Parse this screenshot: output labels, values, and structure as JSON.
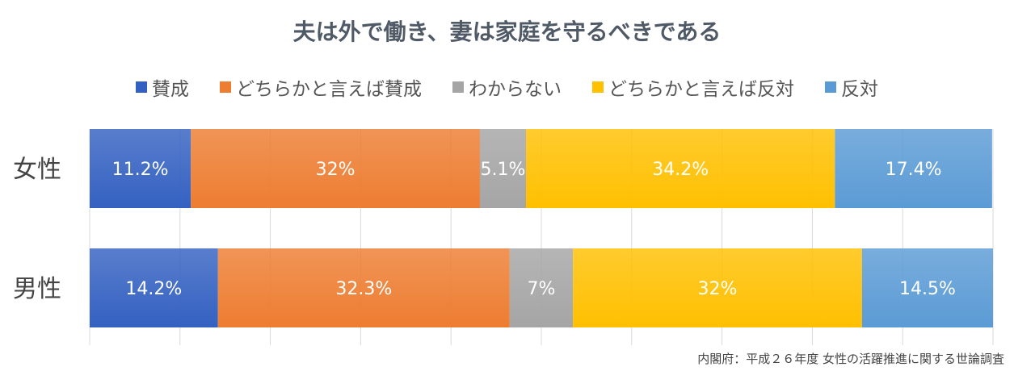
{
  "chart_data": {
    "type": "bar",
    "orientation": "horizontal",
    "stacked": true,
    "title": "夫は外で働き、妻は家庭を守るべきである",
    "categories": [
      "女性",
      "男性"
    ],
    "series": [
      {
        "name": "賛成",
        "values": [
          11.2,
          14.2
        ],
        "labels": [
          "11.2%",
          "14.2%"
        ],
        "color": "#3461c1"
      },
      {
        "name": "どちらかと言えば賛成",
        "values": [
          32,
          32.3
        ],
        "labels": [
          "32%",
          "32.3%"
        ],
        "color": "#ed7d31"
      },
      {
        "name": "わからない",
        "values": [
          5.1,
          7
        ],
        "labels": [
          "5.1%",
          "7%"
        ],
        "color": "#a5a5a5"
      },
      {
        "name": "どちらかと言えば反対",
        "values": [
          34.2,
          32
        ],
        "labels": [
          "34.2%",
          "32%"
        ],
        "color": "#ffc000"
      },
      {
        "name": "反対",
        "values": [
          17.4,
          14.5
        ],
        "labels": [
          "17.4%",
          "14.5%"
        ],
        "color": "#5b9bd5"
      }
    ],
    "xlim": [
      0,
      100
    ],
    "grid": true,
    "legend_position": "top",
    "source": "内閣府：平成２６年度 女性の活躍推進に関する世論調査"
  }
}
